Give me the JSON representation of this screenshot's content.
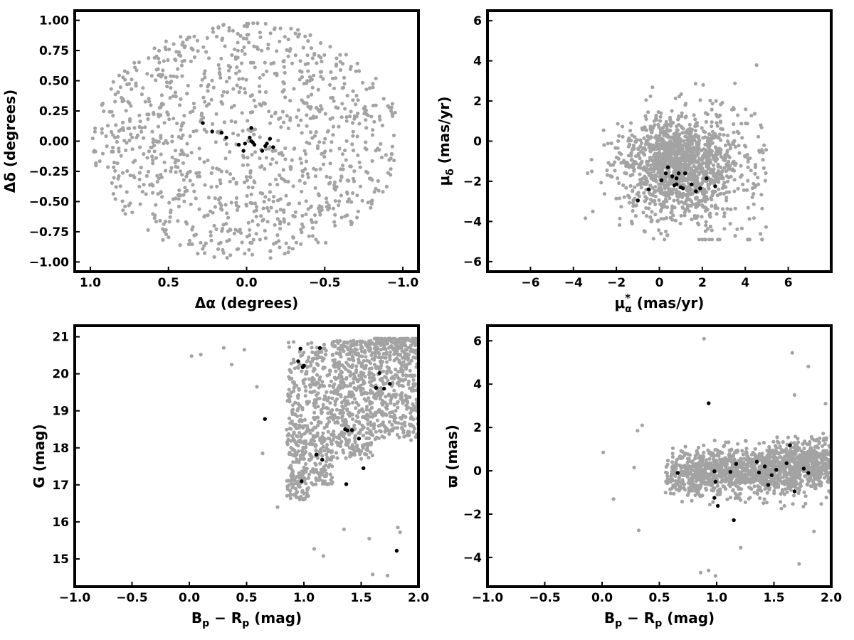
{
  "colors": {
    "background_points": "#a3a3a3",
    "member_points": "#000000",
    "frame": "#000000"
  },
  "chart_data": [
    {
      "type": "scatter",
      "xlabel": "Δα (degrees)",
      "ylabel": "Δδ (degrees)",
      "xlim": [
        1.1,
        -1.1
      ],
      "ylim": [
        -1.08,
        1.08
      ],
      "x_reversed": true,
      "xticks": [
        "1.0",
        "0.5",
        "0.0",
        "−0.5",
        "−1.0"
      ],
      "xtick_values": [
        1.0,
        0.5,
        0.0,
        -0.5,
        -1.0
      ],
      "yticks": [
        "−1.00",
        "−0.75",
        "−0.50",
        "−0.25",
        "0.00",
        "0.25",
        "0.50",
        "0.75",
        "1.00"
      ],
      "ytick_values": [
        -1.0,
        -0.75,
        -0.5,
        -0.25,
        0.0,
        0.25,
        0.5,
        0.75,
        1.0
      ],
      "background_field": {
        "shape": "disk",
        "center": [
          0,
          0
        ],
        "radius_deg": 1.0,
        "approx_count": 1100,
        "color": "#a3a3a3"
      },
      "members": {
        "x": [
          0.28,
          0.22,
          0.16,
          0.13,
          0.05,
          0.02,
          -0.02,
          -0.04,
          -0.05,
          -0.03,
          0.01,
          -0.1,
          -0.12,
          -0.13,
          -0.15,
          -0.17,
          -0.03
        ],
        "y": [
          0.15,
          0.08,
          0.07,
          0.03,
          -0.03,
          -0.08,
          0.03,
          -0.01,
          -0.03,
          0.11,
          -0.02,
          -0.08,
          -0.04,
          -0.02,
          0.02,
          -0.05,
          0.0
        ],
        "color": "#000000"
      }
    },
    {
      "type": "scatter",
      "xlabel": "μ*α (mas/yr)",
      "ylabel": "μδ (mas/yr)",
      "xlim": [
        -8,
        8
      ],
      "ylim": [
        -6.5,
        6.5
      ],
      "xticks": [
        "−6",
        "−4",
        "−2",
        "0",
        "2",
        "4",
        "6"
      ],
      "xtick_values": [
        -6,
        -4,
        -2,
        0,
        2,
        4,
        6
      ],
      "yticks": [
        "−6",
        "−4",
        "−2",
        "0",
        "2",
        "4",
        "6"
      ],
      "ytick_values": [
        -6,
        -4,
        -2,
        0,
        2,
        4,
        6
      ],
      "background_field": {
        "center": [
          0.9,
          -1.2
        ],
        "approx_count": 1500,
        "color": "#a3a3a3"
      },
      "members": {
        "x": [
          -1.0,
          -0.5,
          0.1,
          0.3,
          0.4,
          0.6,
          0.7,
          0.8,
          0.9,
          1.0,
          1.1,
          1.2,
          1.5,
          1.7,
          1.9,
          2.2,
          2.6,
          0.8
        ],
        "y": [
          -2.95,
          -2.4,
          -1.95,
          -1.6,
          -1.3,
          -1.75,
          -2.2,
          -2.15,
          -1.6,
          -2.3,
          -2.35,
          -1.6,
          -2.15,
          -2.5,
          -2.35,
          -1.85,
          -2.25,
          -1.85
        ],
        "color": "#000000"
      }
    },
    {
      "type": "scatter",
      "xlabel": "Bp − Rp (mag)",
      "ylabel": "G (mag)",
      "xlim": [
        -1.0,
        2.0
      ],
      "ylim": [
        14.25,
        21.3
      ],
      "y_reversed": false,
      "xticks": [
        "−1.0",
        "−0.5",
        "0.0",
        "0.5",
        "1.0",
        "1.5",
        "2.0"
      ],
      "xtick_values": [
        -1.0,
        -0.5,
        0.0,
        0.5,
        1.0,
        1.5,
        2.0
      ],
      "yticks": [
        "15",
        "16",
        "17",
        "18",
        "19",
        "20",
        "21"
      ],
      "ytick_values": [
        15,
        16,
        17,
        18,
        19,
        20,
        21
      ],
      "background_field": {
        "approx_count": 1400,
        "color": "#a3a3a3"
      },
      "members": {
        "x": [
          0.97,
          0.99,
          1.0,
          0.95,
          1.14,
          0.66,
          1.36,
          1.38,
          1.42,
          1.48,
          1.11,
          1.16,
          1.52,
          0.98,
          1.37,
          1.66,
          1.63,
          1.7,
          1.75,
          1.81
        ],
        "y": [
          20.68,
          20.18,
          20.22,
          20.34,
          20.7,
          18.78,
          18.5,
          18.47,
          18.48,
          18.25,
          17.82,
          17.68,
          17.45,
          17.1,
          17.02,
          20.02,
          19.62,
          19.6,
          19.73,
          15.22
        ],
        "color": "#000000"
      }
    },
    {
      "type": "scatter",
      "xlabel": "Bp − Rp (mag)",
      "ylabel": "ϖ (mas)",
      "xlim": [
        -1.0,
        2.0
      ],
      "ylim": [
        -5.35,
        6.7
      ],
      "xticks": [
        "−1.0",
        "−0.5",
        "0.0",
        "0.5",
        "1.0",
        "1.5",
        "2.0"
      ],
      "xtick_values": [
        -1.0,
        -0.5,
        0.0,
        0.5,
        1.0,
        1.5,
        2.0
      ],
      "yticks": [
        "−4",
        "−2",
        "0",
        "2",
        "4",
        "6"
      ],
      "ytick_values": [
        -4,
        -2,
        0,
        2,
        4,
        6
      ],
      "background_field": {
        "approx_count": 1500,
        "color": "#a3a3a3"
      },
      "members": {
        "x": [
          0.66,
          0.93,
          0.98,
          0.99,
          0.98,
          1.01,
          1.12,
          1.15,
          1.17,
          1.35,
          1.37,
          1.42,
          1.45,
          1.48,
          1.52,
          1.61,
          1.64,
          1.68,
          1.76,
          1.8
        ],
        "y": [
          -0.1,
          3.12,
          -0.02,
          -0.5,
          -1.25,
          -1.62,
          -0.05,
          -2.28,
          0.32,
          0.42,
          -0.08,
          0.2,
          -0.65,
          -0.2,
          0.05,
          0.35,
          1.18,
          -0.95,
          0.1,
          -0.1
        ],
        "color": "#000000"
      }
    }
  ]
}
